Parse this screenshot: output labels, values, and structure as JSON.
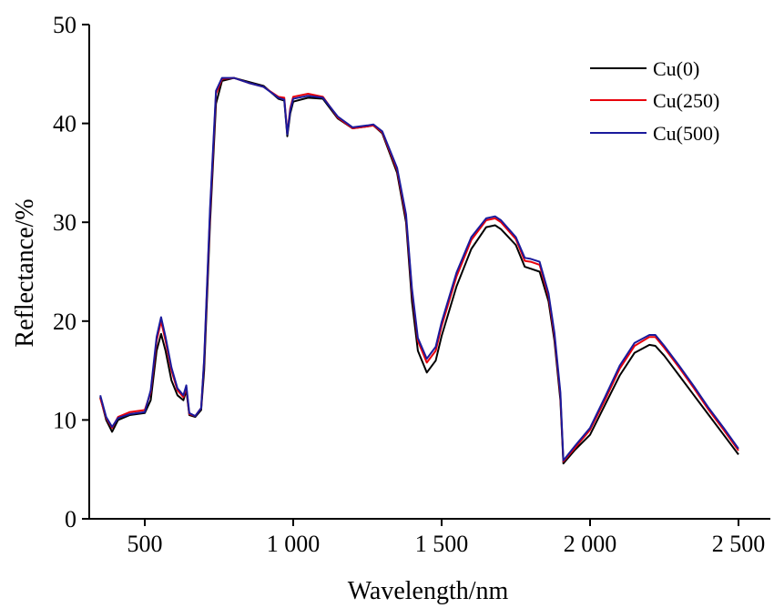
{
  "chart_data": {
    "type": "line",
    "title": "",
    "xlabel": "Wavelength/nm",
    "ylabel": "Reflectance/%",
    "xlim": [
      312,
      2600
    ],
    "ylim": [
      0,
      50
    ],
    "grid": false,
    "legend_placement": "top-right",
    "x_ticks": [
      500,
      1000,
      1500,
      2000,
      2500
    ],
    "x_tick_labels": [
      "500",
      "1 000",
      "1 500",
      "2 000",
      "2 500"
    ],
    "y_ticks": [
      0,
      10,
      20,
      30,
      40,
      50
    ],
    "y_tick_labels": [
      "0",
      "10",
      "20",
      "30",
      "40",
      "50"
    ],
    "x": [
      350,
      370,
      390,
      410,
      450,
      500,
      520,
      540,
      555,
      570,
      590,
      610,
      630,
      640,
      650,
      670,
      690,
      700,
      720,
      740,
      760,
      800,
      850,
      900,
      950,
      970,
      980,
      990,
      1000,
      1050,
      1100,
      1150,
      1200,
      1250,
      1270,
      1300,
      1350,
      1380,
      1400,
      1420,
      1450,
      1480,
      1500,
      1550,
      1600,
      1650,
      1680,
      1700,
      1750,
      1780,
      1800,
      1830,
      1860,
      1880,
      1900,
      1910,
      1950,
      2000,
      2050,
      2100,
      2150,
      2200,
      2220,
      2250,
      2300,
      2350,
      2400,
      2450,
      2500
    ],
    "series": [
      {
        "name": "Cu(0)",
        "color": "#000000",
        "values": [
          12.3,
          10,
          8.8,
          10,
          10.5,
          10.7,
          12,
          17,
          18.7,
          17,
          14,
          12.5,
          12,
          13,
          10.5,
          10.3,
          11,
          15,
          30,
          42,
          44.3,
          44.6,
          44.2,
          43.8,
          42.5,
          42.3,
          38.7,
          41,
          42.2,
          42.6,
          42.5,
          40.5,
          39.5,
          39.7,
          39.8,
          39,
          35,
          30,
          22,
          17,
          14.8,
          16,
          18.5,
          23.5,
          27.3,
          29.5,
          29.7,
          29.3,
          27.7,
          25.5,
          25.3,
          25,
          22,
          18,
          12,
          5.6,
          7,
          8.5,
          11.5,
          14.5,
          16.8,
          17.6,
          17.5,
          16.5,
          14.5,
          12.5,
          10.5,
          8.5,
          6.5
        ]
      },
      {
        "name": "Cu(250)",
        "color": "#e8000b",
        "values": [
          12.2,
          10.2,
          9.2,
          10.3,
          10.8,
          11,
          12.8,
          18,
          20,
          18,
          15,
          13,
          12.3,
          13.3,
          10.6,
          10.4,
          11.2,
          16,
          31,
          43,
          44.5,
          44.6,
          44.1,
          43.7,
          42.7,
          42.6,
          39,
          41.5,
          42.7,
          43,
          42.7,
          40.6,
          39.5,
          39.7,
          39.8,
          39.1,
          35.3,
          30.5,
          23,
          18,
          15.8,
          17,
          19.5,
          24.5,
          28.2,
          30.2,
          30.4,
          30,
          28.3,
          26.1,
          26,
          25.7,
          22.5,
          18.5,
          12.5,
          5.8,
          7.2,
          9,
          12,
          15.2,
          17.5,
          18.4,
          18.4,
          17.3,
          15.3,
          13.2,
          11,
          9,
          6.9
        ]
      },
      {
        "name": "Cu(500)",
        "color": "#1a1a9c",
        "values": [
          12.5,
          10.3,
          9.3,
          10.2,
          10.6,
          10.8,
          13,
          18.4,
          20.4,
          18.4,
          15.3,
          13.2,
          12.5,
          13.5,
          10.7,
          10.4,
          11.2,
          16.2,
          31.5,
          43.3,
          44.6,
          44.6,
          44.1,
          43.7,
          42.6,
          42.4,
          38.9,
          41.3,
          42.5,
          42.8,
          42.6,
          40.7,
          39.6,
          39.8,
          39.9,
          39.2,
          35.5,
          30.8,
          23.3,
          18.3,
          16.2,
          17.4,
          19.9,
          24.9,
          28.5,
          30.4,
          30.6,
          30.2,
          28.5,
          26.4,
          26.3,
          26,
          22.8,
          18.8,
          12.8,
          5.9,
          7.4,
          9.2,
          12.3,
          15.5,
          17.8,
          18.6,
          18.6,
          17.5,
          15.5,
          13.4,
          11.2,
          9.2,
          7.1
        ]
      }
    ]
  }
}
